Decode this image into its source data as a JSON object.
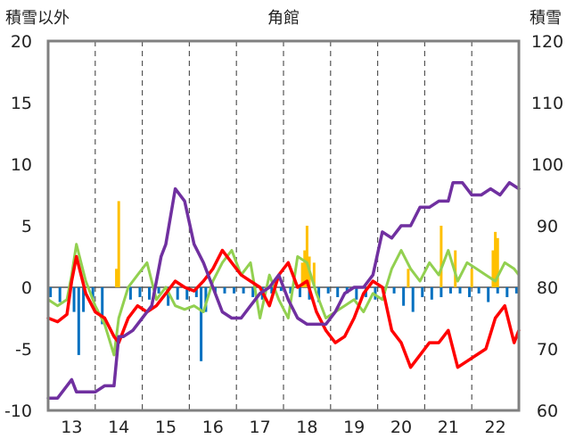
{
  "chart_data": {
    "type": "line",
    "title": "角館",
    "left_axis_label": "積雪以外",
    "right_axis_label": "積雪",
    "left_ylim": [
      -10,
      20
    ],
    "left_yticks": [
      -10,
      -5,
      0,
      5,
      10,
      15,
      20
    ],
    "right_ylim": [
      60,
      120
    ],
    "right_yticks": [
      60,
      70,
      80,
      90,
      100,
      110,
      120
    ],
    "x_ticks": [
      "13",
      "14",
      "15",
      "16",
      "17",
      "18",
      "19",
      "20",
      "21",
      "22"
    ],
    "colors": {
      "red": "#ff0000",
      "purple": "#7030a0",
      "green": "#92d050",
      "blue_bars": "#0070c0",
      "orange_bars": "#ffc000",
      "gridline": "#555555",
      "frame": "#808080"
    },
    "series": [
      {
        "name": "red",
        "axis": "left",
        "x": [
          12.5,
          12.7,
          12.9,
          13.0,
          13.1,
          13.3,
          13.5,
          13.7,
          13.9,
          14.0,
          14.2,
          14.4,
          14.6,
          14.8,
          15.0,
          15.2,
          15.4,
          15.6,
          15.8,
          16.0,
          16.2,
          16.4,
          16.6,
          16.8,
          17.0,
          17.2,
          17.4,
          17.6,
          17.8,
          18.0,
          18.2,
          18.4,
          18.6,
          18.8,
          19.0,
          19.2,
          19.4,
          19.6,
          19.8,
          20.0,
          20.2,
          20.4,
          20.6,
          20.8,
          21.0,
          21.2,
          21.4,
          21.6,
          21.8,
          22.0,
          22.2,
          22.4,
          22.5
        ],
        "values": [
          -2.5,
          -2.8,
          -2.2,
          0.5,
          2.5,
          -0.5,
          -2.0,
          -2.5,
          -4.0,
          -4.5,
          -2.5,
          -1.5,
          -2.0,
          -1.5,
          -0.5,
          0.5,
          0.0,
          -0.3,
          0.5,
          1.5,
          3.0,
          2.0,
          1.0,
          0.5,
          0.0,
          -1.5,
          1.0,
          2.0,
          0.0,
          0.5,
          -2.0,
          -3.5,
          -4.5,
          -4.0,
          -2.5,
          -0.5,
          0.5,
          0.0,
          -3.5,
          -4.5,
          -6.5,
          -5.5,
          -4.5,
          -4.5,
          -3.5,
          -6.5,
          -6.0,
          -5.5,
          -5.0,
          -2.5,
          -1.5,
          -4.5,
          -3.5
        ]
      },
      {
        "name": "purple",
        "axis": "right",
        "x": [
          12.5,
          12.7,
          12.9,
          13.0,
          13.1,
          13.3,
          13.5,
          13.7,
          13.9,
          14.0,
          14.1,
          14.3,
          14.5,
          14.7,
          14.9,
          15.0,
          15.2,
          15.4,
          15.6,
          15.8,
          16.0,
          16.2,
          16.4,
          16.6,
          16.8,
          17.0,
          17.2,
          17.4,
          17.6,
          17.8,
          18.0,
          18.2,
          18.4,
          18.6,
          18.8,
          19.0,
          19.2,
          19.4,
          19.6,
          19.8,
          20.0,
          20.2,
          20.4,
          20.6,
          20.8,
          21.0,
          21.1,
          21.3,
          21.5,
          21.7,
          21.9,
          22.1,
          22.3,
          22.5
        ],
        "values": [
          62,
          62,
          64,
          65,
          63,
          63,
          63,
          64,
          64,
          72,
          72,
          73,
          75,
          77,
          85,
          87,
          96,
          94,
          87,
          84,
          80,
          76,
          75,
          75,
          77,
          79,
          80,
          82,
          78,
          75,
          74,
          74,
          74,
          76,
          79,
          80,
          80,
          82,
          89,
          88,
          90,
          90,
          93,
          93,
          94,
          94,
          97,
          97,
          95,
          95,
          96,
          95,
          97,
          96
        ]
      },
      {
        "name": "green",
        "axis": "left",
        "x": [
          12.5,
          12.7,
          12.9,
          13.0,
          13.1,
          13.3,
          13.5,
          13.7,
          13.9,
          14.0,
          14.2,
          14.4,
          14.6,
          14.8,
          15.0,
          15.2,
          15.4,
          15.6,
          15.8,
          16.0,
          16.2,
          16.4,
          16.6,
          16.8,
          17.0,
          17.2,
          17.4,
          17.6,
          17.8,
          18.0,
          18.2,
          18.4,
          18.6,
          18.8,
          19.0,
          19.2,
          19.4,
          19.6,
          19.8,
          20.0,
          20.2,
          20.4,
          20.6,
          20.8,
          21.0,
          21.2,
          21.4,
          21.6,
          21.8,
          22.0,
          22.2,
          22.4,
          22.5
        ],
        "values": [
          -1.0,
          -1.5,
          -1.0,
          1.0,
          3.5,
          0.5,
          -1.5,
          -3.0,
          -5.5,
          -2.5,
          0.0,
          1.0,
          2.0,
          -1.0,
          0.0,
          -1.5,
          -1.8,
          -1.5,
          -2.0,
          0.5,
          2.0,
          3.0,
          1.0,
          2.0,
          -2.5,
          1.0,
          -1.0,
          -2.5,
          2.5,
          2.0,
          -0.5,
          -2.5,
          -2.0,
          -1.5,
          -1.0,
          -2.0,
          -0.5,
          -1.0,
          1.5,
          3.0,
          1.5,
          0.5,
          2.0,
          1.0,
          3.0,
          0.5,
          2.0,
          1.5,
          1.0,
          0.5,
          2.0,
          1.5,
          1.0
        ]
      }
    ],
    "bars": [
      {
        "name": "blue_bars",
        "axis": "left",
        "x": [
          12.55,
          12.75,
          12.95,
          13.05,
          13.15,
          13.25,
          13.45,
          13.65,
          14.25,
          14.45,
          14.65,
          14.85,
          15.05,
          15.25,
          15.45,
          15.65,
          15.75,
          15.85,
          16.05,
          16.25,
          16.45,
          16.65,
          16.85,
          17.05,
          17.25,
          17.45,
          17.65,
          17.85,
          18.05,
          18.25,
          18.45,
          18.65,
          18.85,
          19.05,
          19.25,
          19.45,
          19.65,
          19.85,
          20.05,
          20.25,
          20.45,
          20.65,
          20.85,
          21.05,
          21.25,
          21.45,
          21.65,
          21.85,
          22.05,
          22.25,
          22.45
        ],
        "values": [
          -0.8,
          -1.2,
          -0.5,
          -2.0,
          -5.5,
          -2.0,
          -1.0,
          -3.0,
          -1.0,
          -0.8,
          -1.0,
          -0.5,
          -1.5,
          -1.0,
          -1.0,
          -0.8,
          -6.0,
          -2.0,
          -0.5,
          -0.5,
          -0.5,
          -0.5,
          -0.8,
          -1.0,
          -0.5,
          -0.3,
          -0.5,
          -0.8,
          -1.0,
          -1.2,
          -0.5,
          -0.8,
          -0.5,
          -1.0,
          -0.8,
          -1.0,
          -0.5,
          -0.5,
          -1.5,
          -2.0,
          -0.8,
          -1.0,
          -0.8,
          -0.5,
          -0.5,
          -0.8,
          -0.5,
          -1.2,
          -0.5,
          -0.8,
          -0.5
        ]
      },
      {
        "name": "orange_bars",
        "axis": "left",
        "x": [
          13.95,
          14.0,
          17.9,
          17.95,
          18.0,
          18.05,
          18.15,
          20.15,
          20.85,
          21.15,
          21.5,
          21.95,
          22.0,
          22.05
        ],
        "values": [
          1.5,
          7.0,
          2.0,
          3.0,
          5.0,
          2.5,
          2.0,
          1.5,
          5.0,
          3.0,
          1.5,
          3.0,
          4.5,
          4.0
        ]
      }
    ]
  }
}
